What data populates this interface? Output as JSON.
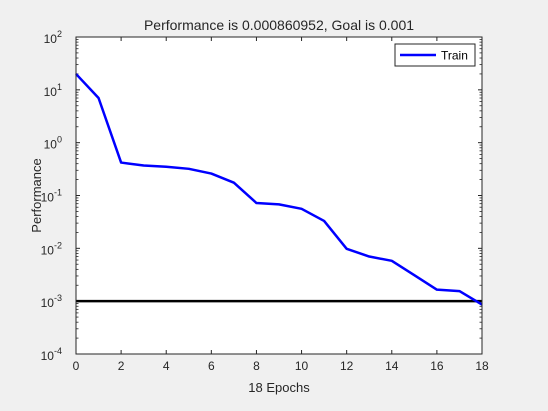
{
  "chart_data": {
    "type": "line",
    "title": "Performance is 0.000860952, Goal is 0.001",
    "xlabel": "18 Epochs",
    "ylabel": "Performance",
    "xlim": [
      0,
      18
    ],
    "ylim": [
      0.0001,
      100
    ],
    "yscale": "log",
    "x_ticks": [
      0,
      2,
      4,
      6,
      8,
      10,
      12,
      14,
      16,
      18
    ],
    "y_tick_exponents": [
      -4,
      -3,
      -2,
      -1,
      0,
      1,
      2
    ],
    "y_tick_base": "10",
    "grid": false,
    "legend_position": "top-right",
    "series": [
      {
        "name": "Train",
        "color": "#0000ff",
        "x": [
          0,
          1,
          2,
          3,
          4,
          5,
          6,
          7,
          8,
          9,
          10,
          11,
          12,
          13,
          14,
          15,
          16,
          17,
          18
        ],
        "y": [
          20,
          7,
          0.42,
          0.37,
          0.35,
          0.32,
          0.26,
          0.175,
          0.072,
          0.068,
          0.056,
          0.033,
          0.0098,
          0.007,
          0.0058,
          0.0031,
          0.00165,
          0.00155,
          0.000860952
        ]
      }
    ],
    "goal": {
      "value": 0.001,
      "color": "#000000"
    }
  }
}
